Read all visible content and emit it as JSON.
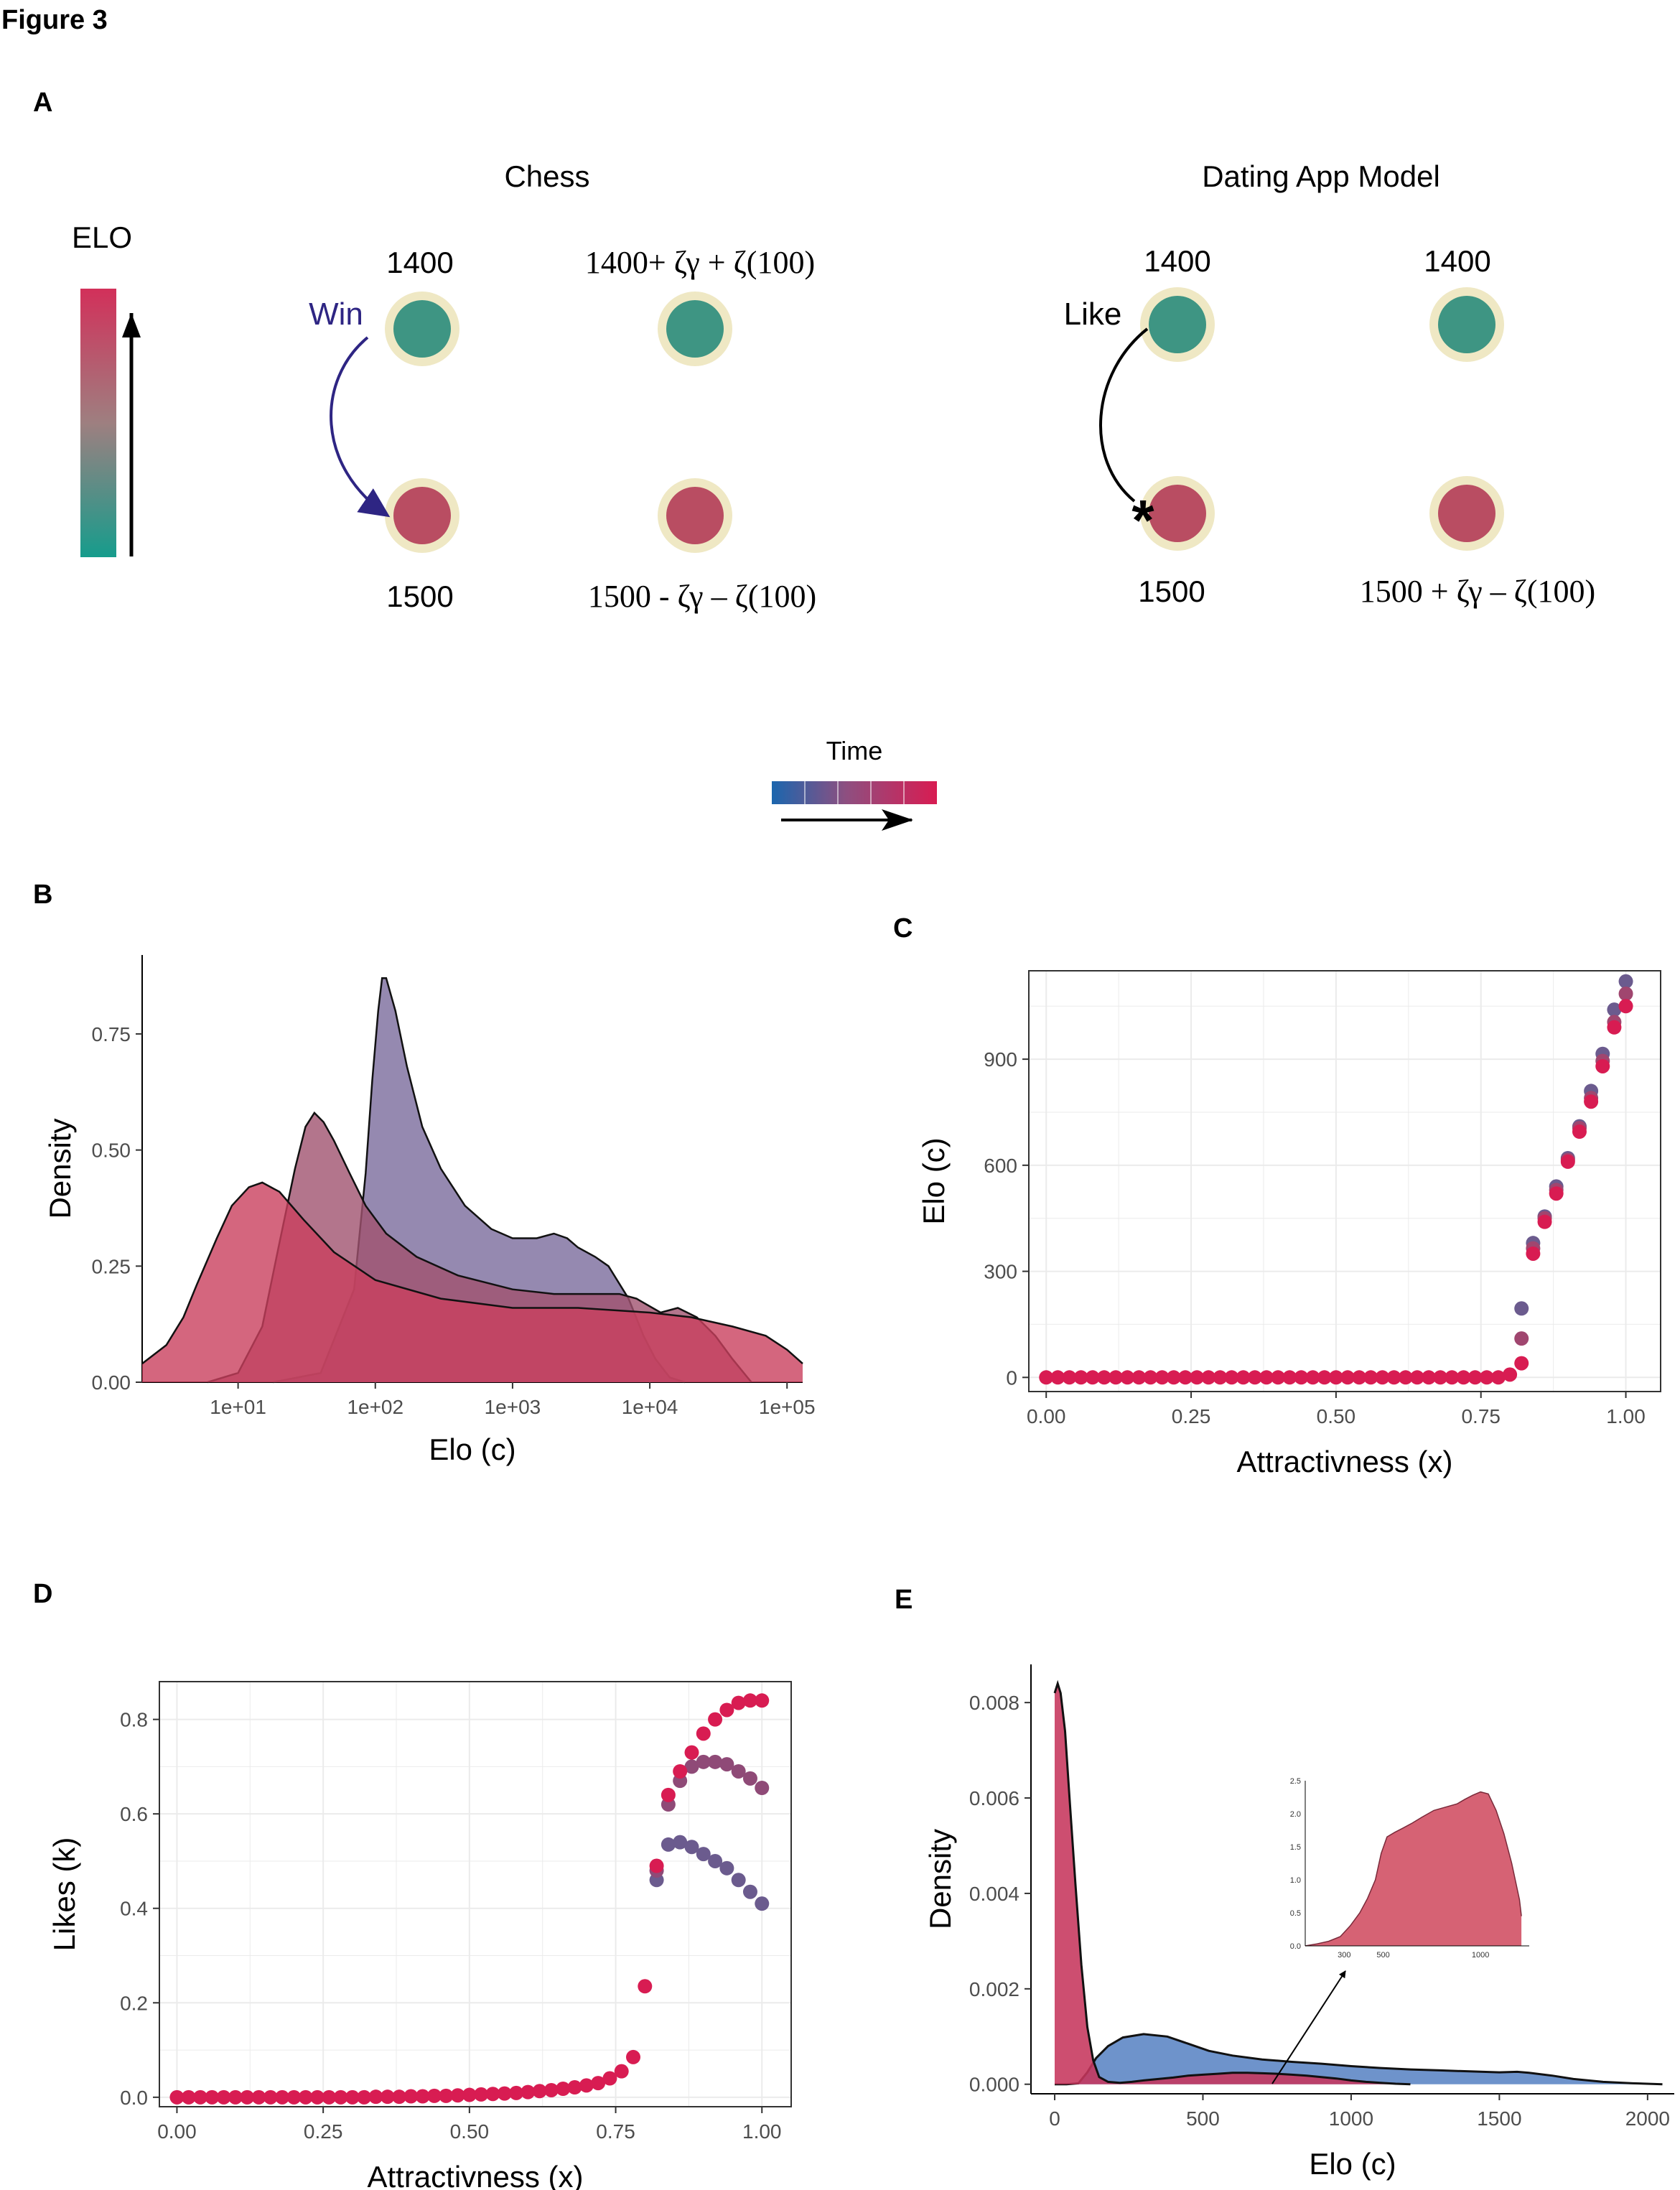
{
  "figure_title": "Figure 3",
  "panel_labels": {
    "a": "A",
    "b": "B",
    "c": "C",
    "d": "D",
    "e": "E"
  },
  "colors": {
    "teal": "#3e9583",
    "rose": "#b94d62",
    "cream": "#efe8c4",
    "elo_top": "#d2305a",
    "elo_bottom": "#169c8c",
    "time_start": "#1b66ae",
    "time_end": "#d81c52",
    "win_arrow": "#2e2583",
    "e_blue": "#5a84c4",
    "e_red": "#c6355c"
  },
  "panel_a": {
    "elo_label": "ELO",
    "chess": {
      "title": "Chess",
      "top_left": "1400",
      "top_right": "1400+ ζγ + ζ(100)",
      "bottom_left": "1500",
      "bottom_right": "1500 - ζγ – ζ(100)",
      "arrow_label": "Win"
    },
    "dating": {
      "title": "Dating App Model",
      "top_left": "1400",
      "top_right": "1400",
      "bottom_left": "1500",
      "bottom_right": "1500 + ζγ – ζ(100)",
      "arrow_label": "Like",
      "marker": "*"
    }
  },
  "time_legend": {
    "label": "Time",
    "segments": 5
  },
  "chart_data": [
    {
      "panel": "B",
      "type": "area",
      "title": "",
      "xlabel": "Elo (c)",
      "ylabel": "Density",
      "xscale": "log10",
      "xlim": [
        2,
        130000
      ],
      "ylim": [
        0,
        0.92
      ],
      "xticks": [
        10,
        100,
        1000,
        10000,
        100000
      ],
      "xtick_labels": [
        "1e+01",
        "1e+02",
        "1e+03",
        "1e+04",
        "1e+05"
      ],
      "yticks": [
        0,
        0.25,
        0.5,
        0.75
      ],
      "ytick_labels": [
        "0.00",
        "0.25",
        "0.50",
        "0.75"
      ],
      "grid": false,
      "series": [
        {
          "color": "#7a6b9c",
          "x": [
            18,
            40,
            70,
            85,
            95,
            105,
            112,
            120,
            140,
            170,
            220,
            300,
            450,
            700,
            1000,
            1500,
            2000,
            2500,
            3000,
            4000,
            5000,
            7000,
            9000,
            11000,
            14000,
            18000
          ],
          "y": [
            0,
            0.02,
            0.2,
            0.45,
            0.65,
            0.8,
            0.87,
            0.87,
            0.8,
            0.68,
            0.55,
            0.46,
            0.38,
            0.33,
            0.31,
            0.31,
            0.32,
            0.31,
            0.29,
            0.27,
            0.25,
            0.18,
            0.1,
            0.05,
            0.01,
            0
          ]
        },
        {
          "color": "#a0536f",
          "x": [
            6,
            10,
            15,
            20,
            26,
            31,
            36,
            42,
            50,
            65,
            85,
            120,
            200,
            400,
            1000,
            2000,
            4000,
            6000,
            8000,
            12000,
            16000,
            22000,
            30000,
            40000,
            55000
          ],
          "y": [
            0,
            0.02,
            0.12,
            0.3,
            0.46,
            0.55,
            0.58,
            0.56,
            0.52,
            0.45,
            0.38,
            0.32,
            0.27,
            0.23,
            0.2,
            0.19,
            0.19,
            0.19,
            0.18,
            0.15,
            0.16,
            0.14,
            0.1,
            0.05,
            0
          ]
        },
        {
          "color": "#c9405e",
          "x": [
            2,
            3,
            4,
            5,
            7,
            9,
            12,
            15,
            20,
            30,
            50,
            100,
            300,
            1000,
            3000,
            10000,
            20000,
            40000,
            70000,
            100000,
            130000
          ],
          "y": [
            0.04,
            0.08,
            0.14,
            0.21,
            0.31,
            0.38,
            0.42,
            0.43,
            0.41,
            0.35,
            0.28,
            0.22,
            0.18,
            0.16,
            0.16,
            0.15,
            0.14,
            0.12,
            0.1,
            0.07,
            0.04
          ]
        }
      ]
    },
    {
      "panel": "C",
      "type": "scatter",
      "title": "",
      "xlabel": "Attractivness (x)",
      "ylabel": "Elo (c)",
      "xlim": [
        -0.03,
        1.06
      ],
      "ylim": [
        -40,
        1150
      ],
      "xticks": [
        0,
        0.25,
        0.5,
        0.75,
        1.0
      ],
      "xtick_labels": [
        "0.00",
        "0.25",
        "0.50",
        "0.75",
        "1.00"
      ],
      "yticks": [
        0,
        300,
        600,
        900
      ],
      "ytick_labels": [
        "0",
        "300",
        "600",
        "900"
      ],
      "grid": true,
      "zero_until": 0.8,
      "series": [
        {
          "color": "#d81c52",
          "x": [
            0.82,
            0.84,
            0.86,
            0.88,
            0.9,
            0.92,
            0.94,
            0.96,
            0.98,
            1.0
          ],
          "y": [
            40,
            350,
            440,
            520,
            610,
            695,
            780,
            880,
            990,
            1050
          ]
        },
        {
          "color": "#a0466f",
          "x": [
            0.82,
            0.84,
            0.86,
            0.88,
            0.9,
            0.92,
            0.94,
            0.96,
            0.98,
            1.0
          ],
          "y": [
            110,
            365,
            450,
            530,
            615,
            705,
            790,
            895,
            1005,
            1085
          ]
        },
        {
          "color": "#6b5b8e",
          "x": [
            0.82,
            0.84,
            0.86,
            0.88,
            0.9,
            0.92,
            0.94,
            0.96,
            0.98,
            1.0
          ],
          "y": [
            195,
            380,
            455,
            540,
            620,
            710,
            810,
            915,
            1040,
            1120
          ]
        }
      ]
    },
    {
      "panel": "D",
      "type": "scatter",
      "title": "",
      "xlabel": "Attractivness (x)",
      "ylabel": "Likes (k)",
      "xlim": [
        -0.03,
        1.05
      ],
      "ylim": [
        -0.02,
        0.88
      ],
      "xticks": [
        0,
        0.25,
        0.5,
        0.75,
        1.0
      ],
      "xtick_labels": [
        "0.00",
        "0.25",
        "0.50",
        "0.75",
        "1.00"
      ],
      "yticks": [
        0,
        0.2,
        0.4,
        0.6,
        0.8
      ],
      "ytick_labels": [
        "0.0",
        "0.2",
        "0.4",
        "0.6",
        "0.8"
      ],
      "grid": true,
      "base_curve": {
        "color": "#d81c52",
        "x": [
          0.0,
          0.02,
          0.04,
          0.06,
          0.08,
          0.1,
          0.12,
          0.14,
          0.16,
          0.18,
          0.2,
          0.22,
          0.24,
          0.26,
          0.28,
          0.3,
          0.32,
          0.34,
          0.36,
          0.38,
          0.4,
          0.42,
          0.44,
          0.46,
          0.48,
          0.5,
          0.52,
          0.54,
          0.56,
          0.58,
          0.6,
          0.62,
          0.64,
          0.66,
          0.68,
          0.7,
          0.72,
          0.74,
          0.76,
          0.78,
          0.8
        ],
        "y": [
          0,
          0,
          0,
          0,
          0,
          0,
          0,
          0,
          0,
          0,
          0,
          0,
          0,
          0,
          0,
          0,
          0,
          0.001,
          0.001,
          0.001,
          0.002,
          0.002,
          0.003,
          0.003,
          0.004,
          0.005,
          0.006,
          0.007,
          0.008,
          0.009,
          0.011,
          0.013,
          0.015,
          0.018,
          0.021,
          0.025,
          0.03,
          0.04,
          0.055,
          0.085,
          0.235
        ]
      },
      "series": [
        {
          "color": "#d81c52",
          "x": [
            0.82,
            0.84,
            0.86,
            0.88,
            0.9,
            0.92,
            0.94,
            0.96,
            0.98,
            1.0
          ],
          "y": [
            0.49,
            0.64,
            0.69,
            0.73,
            0.77,
            0.8,
            0.82,
            0.835,
            0.84,
            0.84
          ]
        },
        {
          "color": "#8f4a77",
          "x": [
            0.82,
            0.84,
            0.86,
            0.88,
            0.9,
            0.92,
            0.94,
            0.96,
            0.98,
            1.0
          ],
          "y": [
            0.48,
            0.62,
            0.67,
            0.7,
            0.71,
            0.71,
            0.705,
            0.69,
            0.675,
            0.655
          ]
        },
        {
          "color": "#6b5b8e",
          "x": [
            0.82,
            0.84,
            0.86,
            0.88,
            0.9,
            0.92,
            0.94,
            0.96,
            0.98,
            1.0
          ],
          "y": [
            0.46,
            0.535,
            0.54,
            0.53,
            0.515,
            0.5,
            0.485,
            0.46,
            0.435,
            0.41
          ]
        }
      ]
    },
    {
      "panel": "E",
      "type": "area",
      "title": "",
      "xlabel": "Elo (c)",
      "ylabel": "Density",
      "xlim": [
        -80,
        2090
      ],
      "ylim": [
        -0.0002,
        0.0088
      ],
      "xticks": [
        0,
        500,
        1000,
        1500,
        2000
      ],
      "xtick_labels": [
        "0",
        "500",
        "1000",
        "1500",
        "2000"
      ],
      "yticks": [
        0,
        0.002,
        0.004,
        0.006,
        0.008
      ],
      "ytick_labels": [
        "0.000",
        "0.002",
        "0.004",
        "0.006",
        "0.008"
      ],
      "grid": false,
      "series": [
        {
          "color": "#5a84c4",
          "x": [
            0,
            40,
            80,
            110,
            140,
            180,
            230,
            300,
            380,
            450,
            520,
            600,
            700,
            800,
            900,
            1000,
            1100,
            1200,
            1300,
            1400,
            1500,
            1560,
            1600,
            1680,
            1750,
            1850,
            1950,
            2050
          ],
          "y": [
            0,
            0,
            2e-05,
            0.00025,
            0.00055,
            0.0008,
            0.00098,
            0.00105,
            0.001,
            0.00085,
            0.0007,
            0.0006,
            0.00052,
            0.00047,
            0.00043,
            0.00038,
            0.00034,
            0.00031,
            0.00029,
            0.00027,
            0.00025,
            0.00026,
            0.00024,
            0.00018,
            0.00011,
            5e-05,
            2e-05,
            0
          ]
        },
        {
          "color": "#c6355c",
          "x": [
            0,
            10,
            20,
            35,
            50,
            70,
            90,
            110,
            130,
            150,
            180,
            220,
            260,
            300,
            350,
            400,
            450,
            500,
            550,
            600,
            650,
            700,
            750,
            800,
            850,
            900,
            950,
            1000,
            1050,
            1100,
            1150,
            1200
          ],
          "y": [
            0.0082,
            0.0084,
            0.0082,
            0.0074,
            0.006,
            0.0042,
            0.0025,
            0.0012,
            0.0005,
            0.00015,
            5e-05,
            3e-05,
            5e-05,
            8e-05,
            0.00011,
            0.00014,
            0.00018,
            0.0002,
            0.00022,
            0.00024,
            0.00024,
            0.00023,
            0.00022,
            0.0002,
            0.00018,
            0.00015,
            0.00012,
            8e-05,
            5e-05,
            3e-05,
            1e-05,
            0
          ]
        }
      ],
      "inset": {
        "type": "area",
        "color": "#d66274",
        "xlim": [
          100,
          1250
        ],
        "ylim": [
          0,
          2.5
        ],
        "xticks": [
          300,
          500,
          1000
        ],
        "xtick_labels": [
          "300",
          "500",
          "1000"
        ],
        "yticks": [
          0,
          0.5,
          1.0,
          1.5,
          2.0,
          2.5
        ],
        "ytick_labels": [
          "0.0",
          "0.5",
          "1.0",
          "1.5",
          "2.0",
          "2.5"
        ],
        "x": [
          100,
          160,
          220,
          280,
          330,
          380,
          420,
          460,
          490,
          520,
          560,
          600,
          650,
          700,
          760,
          820,
          880,
          920,
          960,
          1000,
          1040,
          1080,
          1120,
          1160,
          1200,
          1210
        ],
        "y": [
          0,
          0.03,
          0.07,
          0.14,
          0.3,
          0.5,
          0.72,
          1.0,
          1.4,
          1.65,
          1.72,
          1.78,
          1.86,
          1.95,
          2.05,
          2.1,
          2.15,
          2.22,
          2.28,
          2.33,
          2.3,
          2.05,
          1.7,
          1.25,
          0.7,
          0.45
        ]
      }
    }
  ]
}
